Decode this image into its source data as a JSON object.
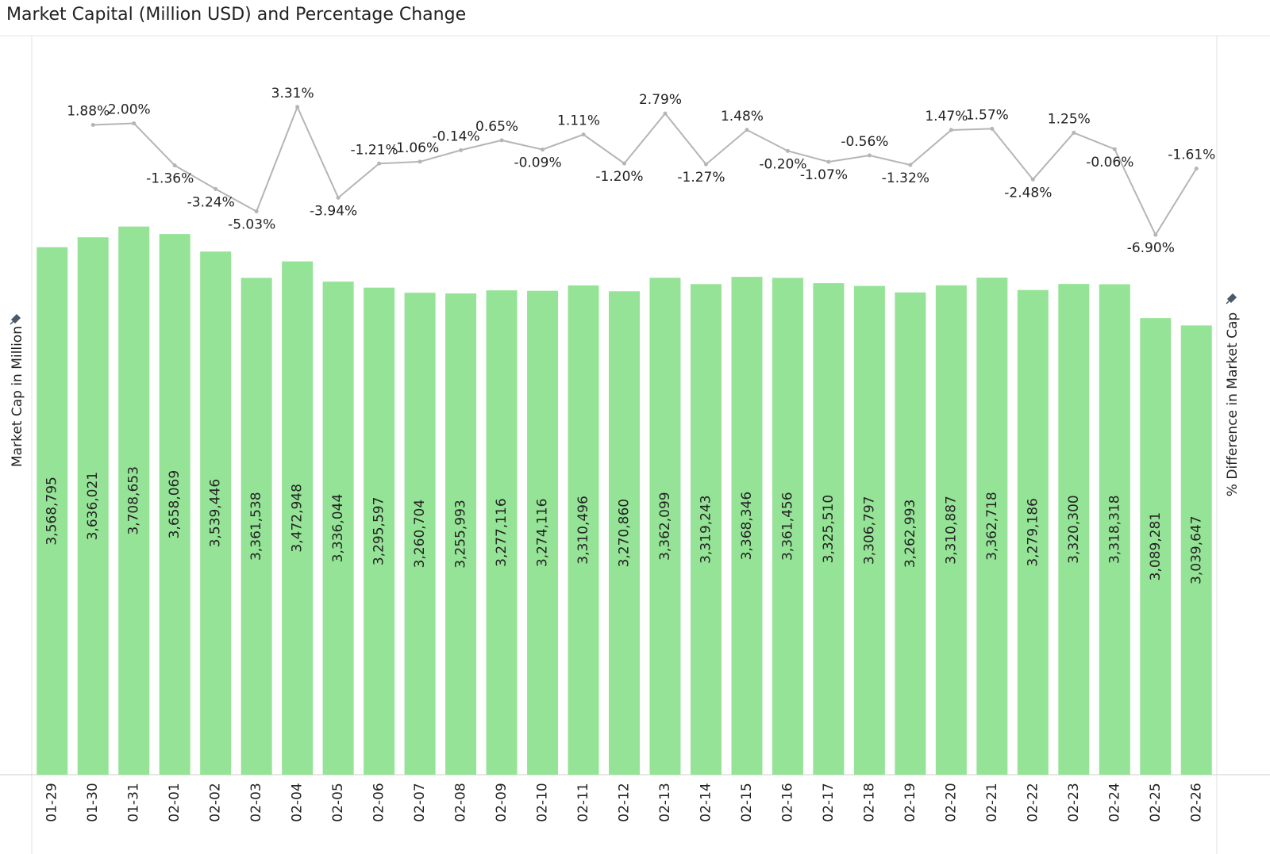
{
  "chart_data": {
    "type": "bar",
    "title": "Market Capital (Million USD) and Percentage Change",
    "y_label": "Market Cap in Million",
    "y2_label": "% Difference in Market Cap",
    "categories": [
      "01-29",
      "01-30",
      "01-31",
      "02-01",
      "02-02",
      "02-03",
      "02-04",
      "02-05",
      "02-06",
      "02-07",
      "02-08",
      "02-09",
      "02-10",
      "02-11",
      "02-12",
      "02-13",
      "02-14",
      "02-15",
      "02-16",
      "02-17",
      "02-18",
      "02-19",
      "02-20",
      "02-21",
      "02-22",
      "02-23",
      "02-24",
      "02-25",
      "02-26"
    ],
    "ylim": [
      0,
      5000000
    ],
    "y2lim": [
      -50,
      9
    ],
    "series": [
      {
        "name": "Market Cap in Million",
        "type": "bar",
        "color": "#95e396",
        "values": [
          3568795,
          3636021,
          3708653,
          3658069,
          3539446,
          3361538,
          3472948,
          3336044,
          3295597,
          3260704,
          3255993,
          3277116,
          3274116,
          3310496,
          3270860,
          3362099,
          3319243,
          3368346,
          3361456,
          3325510,
          3306797,
          3262993,
          3310887,
          3362718,
          3279186,
          3320300,
          3318318,
          3089281,
          3039647
        ],
        "value_labels": [
          "3,568,795",
          "3,636,021",
          "3,708,653",
          "3,658,069",
          "3,539,446",
          "3,361,538",
          "3,472,948",
          "3,336,044",
          "3,295,597",
          "3,260,704",
          "3,255,993",
          "3,277,116",
          "3,274,116",
          "3,310,496",
          "3,270,860",
          "3,362,099",
          "3,319,243",
          "3,368,346",
          "3,361,456",
          "3,325,510",
          "3,306,797",
          "3,262,993",
          "3,310,887",
          "3,362,718",
          "3,279,186",
          "3,320,300",
          "3,318,318",
          "3,089,281",
          "3,039,647"
        ]
      },
      {
        "name": "% Difference in Market Cap",
        "type": "line",
        "axis": "y2",
        "color": "#b5b5b5",
        "values": [
          null,
          1.88,
          2.0,
          -1.36,
          -3.24,
          -5.03,
          3.31,
          -3.94,
          -1.21,
          -1.06,
          -0.14,
          0.65,
          -0.09,
          1.11,
          -1.2,
          2.79,
          -1.27,
          1.48,
          -0.2,
          -1.07,
          -0.56,
          -1.32,
          1.47,
          1.57,
          -2.48,
          1.25,
          -0.06,
          -6.9,
          -1.61
        ],
        "value_labels": [
          null,
          "1.88%",
          "2.00%",
          "-1.36%",
          "-3.24%",
          "-5.03%",
          "3.31%",
          "-3.94%",
          "-1.21%",
          "-1.06%",
          "-0.14%",
          "0.65%",
          "-0.09%",
          "1.11%",
          "-1.20%",
          "2.79%",
          "-1.27%",
          "1.48%",
          "-0.20%",
          "-1.07%",
          "-0.56%",
          "-1.32%",
          "1.47%",
          "1.57%",
          "-2.48%",
          "1.25%",
          "-0.06%",
          "-6.90%",
          "-1.61%"
        ]
      }
    ]
  }
}
